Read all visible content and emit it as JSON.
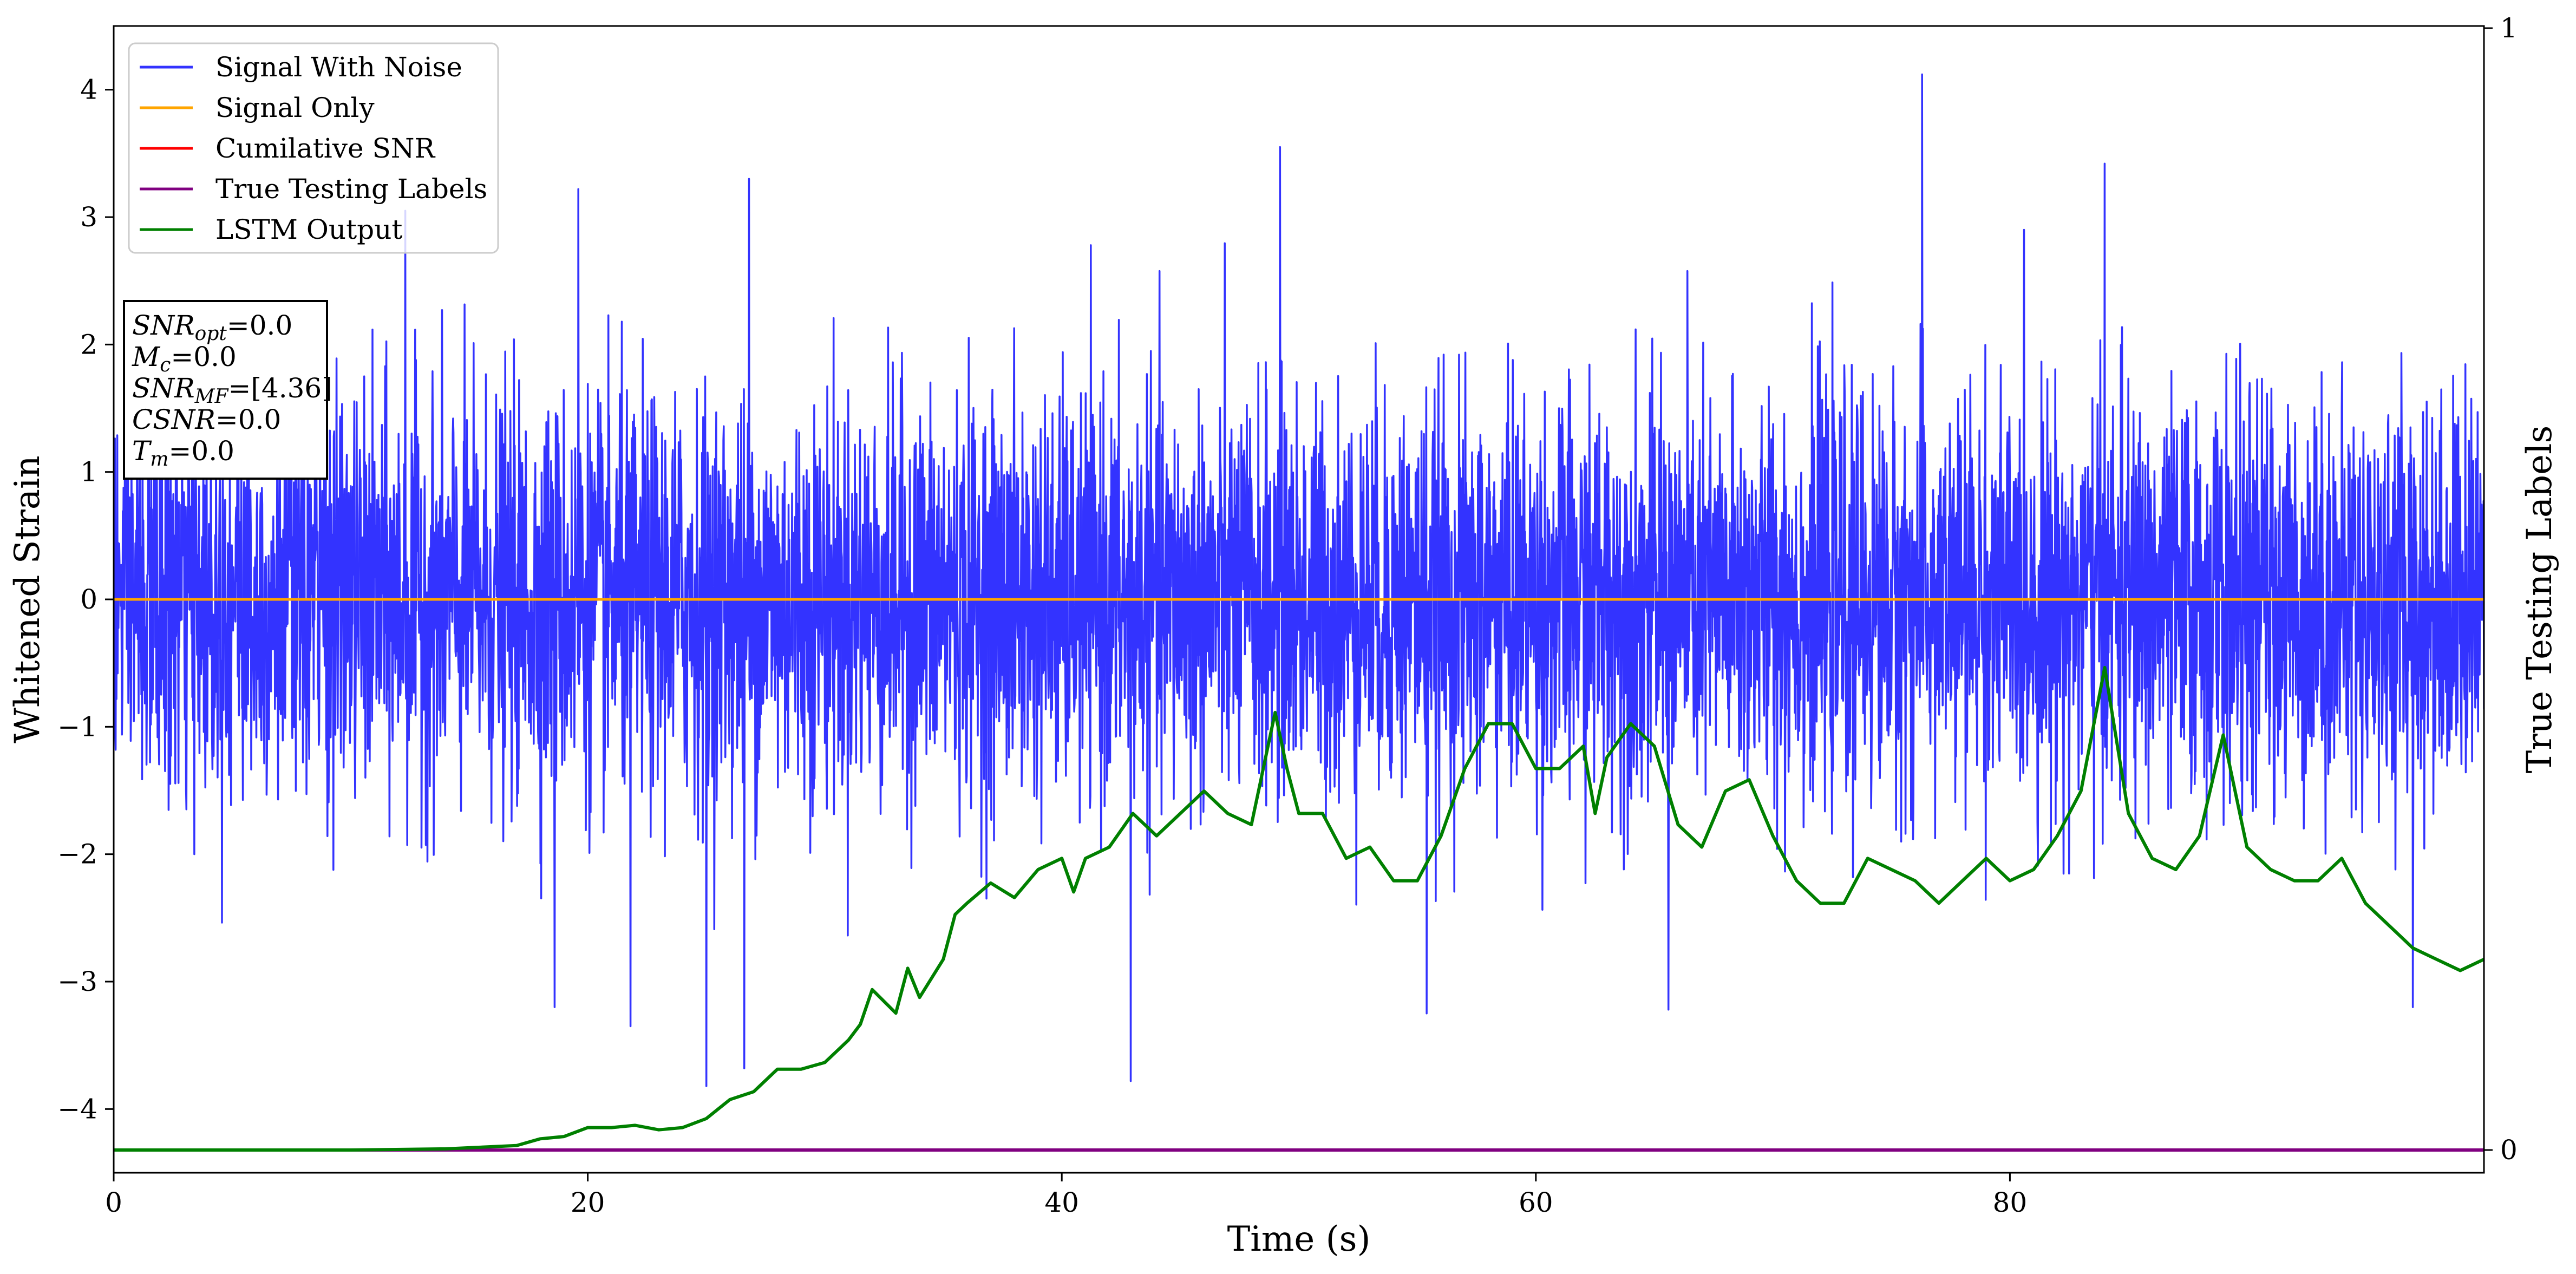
{
  "chart_data": {
    "type": "line",
    "xlabel": "Time (s)",
    "ylabel": "Whitened Strain",
    "y2label": "True Testing Labels",
    "xlim": [
      0,
      100
    ],
    "ylim": [
      -4.5,
      4.5
    ],
    "y2lim": [
      0,
      1
    ],
    "xticks": [
      "0",
      "20",
      "40",
      "60",
      "80"
    ],
    "xtick_values": [
      0,
      20,
      40,
      60,
      80
    ],
    "yticks": [
      "4",
      "3",
      "2",
      "1",
      "0",
      "−1",
      "−2",
      "−3",
      "−4"
    ],
    "ytick_values": [
      4,
      3,
      2,
      1,
      0,
      -1,
      -2,
      -3,
      -4
    ],
    "y2ticks": [
      "1",
      "0"
    ],
    "y2tick_values": [
      1,
      0
    ],
    "legend_position": "upper-left",
    "legend": [
      {
        "label": "Signal With Noise",
        "color": "#3333ff"
      },
      {
        "label": "Signal Only",
        "color": "#ffa500"
      },
      {
        "label": "Cumilative SNR",
        "color": "#ff0000"
      },
      {
        "label": "True Testing Labels",
        "color": "#800080"
      },
      {
        "label": "LSTM Output",
        "color": "#008000"
      }
    ],
    "annotation": [
      {
        "sym": "SNR",
        "sub": "opt",
        "value": "=0.0"
      },
      {
        "sym": "M",
        "sub": "c",
        "value": "=0.0"
      },
      {
        "sym": "SNR",
        "sub": "MF",
        "value": "=[4.36]"
      },
      {
        "sym": "CSNR",
        "sub": "",
        "value": "=0.0"
      },
      {
        "sym": "T",
        "sub": "m",
        "value": "=0.0"
      }
    ],
    "noise_series": {
      "name": "Signal With Noise",
      "color": "#3333ff",
      "x_range": [
        0,
        100
      ],
      "typical_band": [
        -1.6,
        1.6
      ],
      "peaks": [
        {
          "x": 49.2,
          "y": 3.55
        },
        {
          "x": 76.3,
          "y": 4.12
        },
        {
          "x": 84.0,
          "y": 3.42
        },
        {
          "x": 12.3,
          "y": 3.05
        },
        {
          "x": 19.6,
          "y": 3.22
        },
        {
          "x": 26.8,
          "y": 3.3
        },
        {
          "x": 42.9,
          "y": -3.78
        },
        {
          "x": 25.0,
          "y": -3.82
        },
        {
          "x": 26.6,
          "y": -3.68
        },
        {
          "x": 21.8,
          "y": -3.35
        },
        {
          "x": 18.6,
          "y": -3.2
        },
        {
          "x": 55.4,
          "y": -3.25
        },
        {
          "x": 97.0,
          "y": -3.2
        },
        {
          "x": 65.6,
          "y": -3.22
        }
      ]
    },
    "signal_only": {
      "name": "Signal Only",
      "color": "#ffa500",
      "value": 0
    },
    "true_labels": {
      "name": "True Testing Labels",
      "color": "#800080",
      "value": 0
    },
    "lstm_output": {
      "name": "LSTM Output",
      "color": "#008000",
      "axis": "right",
      "x": [
        0,
        5,
        10,
        14,
        17,
        18,
        19,
        20,
        21,
        22,
        23,
        24,
        25,
        26,
        27,
        28,
        29,
        30,
        31,
        31.5,
        32,
        33,
        33.5,
        34,
        35,
        35.5,
        36,
        37,
        38,
        39,
        40,
        40.5,
        41,
        42,
        43,
        44,
        45,
        46,
        47,
        48,
        49,
        49.5,
        50,
        51,
        52,
        53,
        54,
        55,
        56,
        57,
        58,
        59,
        60,
        61,
        62,
        62.5,
        63,
        64,
        65,
        66,
        67,
        68,
        69,
        70,
        71,
        72,
        73,
        74,
        75,
        76,
        77,
        78,
        79,
        80,
        81,
        82,
        83,
        84,
        85,
        86,
        87,
        88,
        89,
        90,
        91,
        92,
        93,
        94,
        95,
        96,
        97,
        98,
        99,
        100
      ],
      "y": [
        0,
        0,
        0,
        0.001,
        0.004,
        0.01,
        0.012,
        0.02,
        0.02,
        0.022,
        0.018,
        0.02,
        0.028,
        0.045,
        0.052,
        0.072,
        0.072,
        0.078,
        0.098,
        0.112,
        0.143,
        0.122,
        0.162,
        0.136,
        0.17,
        0.21,
        0.22,
        0.238,
        0.225,
        0.25,
        0.26,
        0.23,
        0.26,
        0.27,
        0.3,
        0.28,
        0.3,
        0.32,
        0.3,
        0.29,
        0.39,
        0.34,
        0.3,
        0.3,
        0.26,
        0.27,
        0.24,
        0.24,
        0.28,
        0.34,
        0.38,
        0.38,
        0.34,
        0.34,
        0.36,
        0.3,
        0.35,
        0.38,
        0.36,
        0.29,
        0.27,
        0.32,
        0.33,
        0.28,
        0.24,
        0.22,
        0.22,
        0.26,
        0.25,
        0.24,
        0.22,
        0.24,
        0.26,
        0.24,
        0.25,
        0.28,
        0.32,
        0.43,
        0.3,
        0.26,
        0.25,
        0.28,
        0.37,
        0.27,
        0.25,
        0.24,
        0.24,
        0.26,
        0.22,
        0.2,
        0.18,
        0.17,
        0.16,
        0.17
      ]
    }
  }
}
